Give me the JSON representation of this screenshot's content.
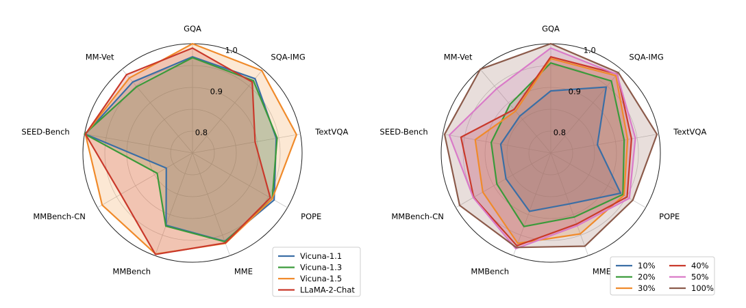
{
  "chart_data": [
    {
      "type": "radar",
      "axes": [
        "GQA",
        "SQA-IMG",
        "TextVQA",
        "POPE",
        "MME",
        "MMBench",
        "MMBench-CN",
        "SEED-Bench",
        "MM-Vet"
      ],
      "rlim": [
        0.75,
        1.0
      ],
      "rticks": [
        "0.8",
        "0.9",
        "1.0"
      ],
      "grid": true,
      "legend_placement": "bottom-right",
      "legend_columns": 1,
      "series": [
        {
          "name": "Vicuna-1.1",
          "color": "#3a6ea5",
          "values": [
            0.97,
            0.972,
            0.944,
            0.965,
            0.965,
            0.926,
            0.819,
            0.998,
            0.962
          ]
        },
        {
          "name": "Vicuna-1.3",
          "color": "#3a9a3a",
          "values": [
            0.968,
            0.966,
            0.946,
            0.96,
            0.966,
            0.928,
            0.843,
            1.0,
            0.948
          ]
        },
        {
          "name": "Vicuna-1.5",
          "color": "#f08a2a",
          "values": [
            1.0,
            0.996,
            0.991,
            0.96,
            0.97,
            0.996,
            0.988,
            0.998,
            0.974
          ]
        },
        {
          "name": "LLaMA-2-Chat",
          "color": "#c9392b",
          "values": [
            0.99,
            0.962,
            0.895,
            0.955,
            0.969,
            0.997,
            0.939,
            0.998,
            0.984
          ]
        }
      ]
    },
    {
      "type": "radar",
      "axes": [
        "GQA",
        "SQA-IMG",
        "TextVQA",
        "POPE",
        "MME",
        "MMBench",
        "MMBench-CN",
        "SEED-Bench",
        "MM-Vet"
      ],
      "rlim": [
        0.75,
        1.0
      ],
      "rticks": [
        "0.8",
        "0.9",
        "1.0"
      ],
      "grid": true,
      "legend_placement": "bottom-right",
      "legend_columns": 2,
      "series": [
        {
          "name": "10%",
          "color": "#3a6ea5",
          "values": [
            0.892,
            0.947,
            0.858,
            0.934,
            0.874,
            0.892,
            0.868,
            0.866,
            0.86
          ]
        },
        {
          "name": "20%",
          "color": "#3a9a3a",
          "values": [
            0.956,
            0.965,
            0.92,
            0.94,
            0.906,
            0.929,
            0.892,
            0.888,
            0.895
          ]
        },
        {
          "name": "30%",
          "color": "#f08a2a",
          "values": [
            0.966,
            0.981,
            0.928,
            0.943,
            0.947,
            0.97,
            0.929,
            0.925,
            0.875
          ]
        },
        {
          "name": "40%",
          "color": "#c9392b",
          "values": [
            0.97,
            0.986,
            0.937,
            0.951,
            0.923,
            0.976,
            0.953,
            0.958,
            0.88
          ]
        },
        {
          "name": "50%",
          "color": "#d97ac8",
          "values": [
            0.99,
            0.985,
            0.946,
            0.957,
            0.927,
            0.983,
            0.954,
            0.985,
            0.942
          ]
        },
        {
          "name": "100%",
          "color": "#8b5a4a",
          "values": [
            1.0,
            0.99,
            0.996,
            0.966,
            0.977,
            0.98,
            0.99,
            0.996,
            1.0
          ]
        }
      ]
    }
  ]
}
